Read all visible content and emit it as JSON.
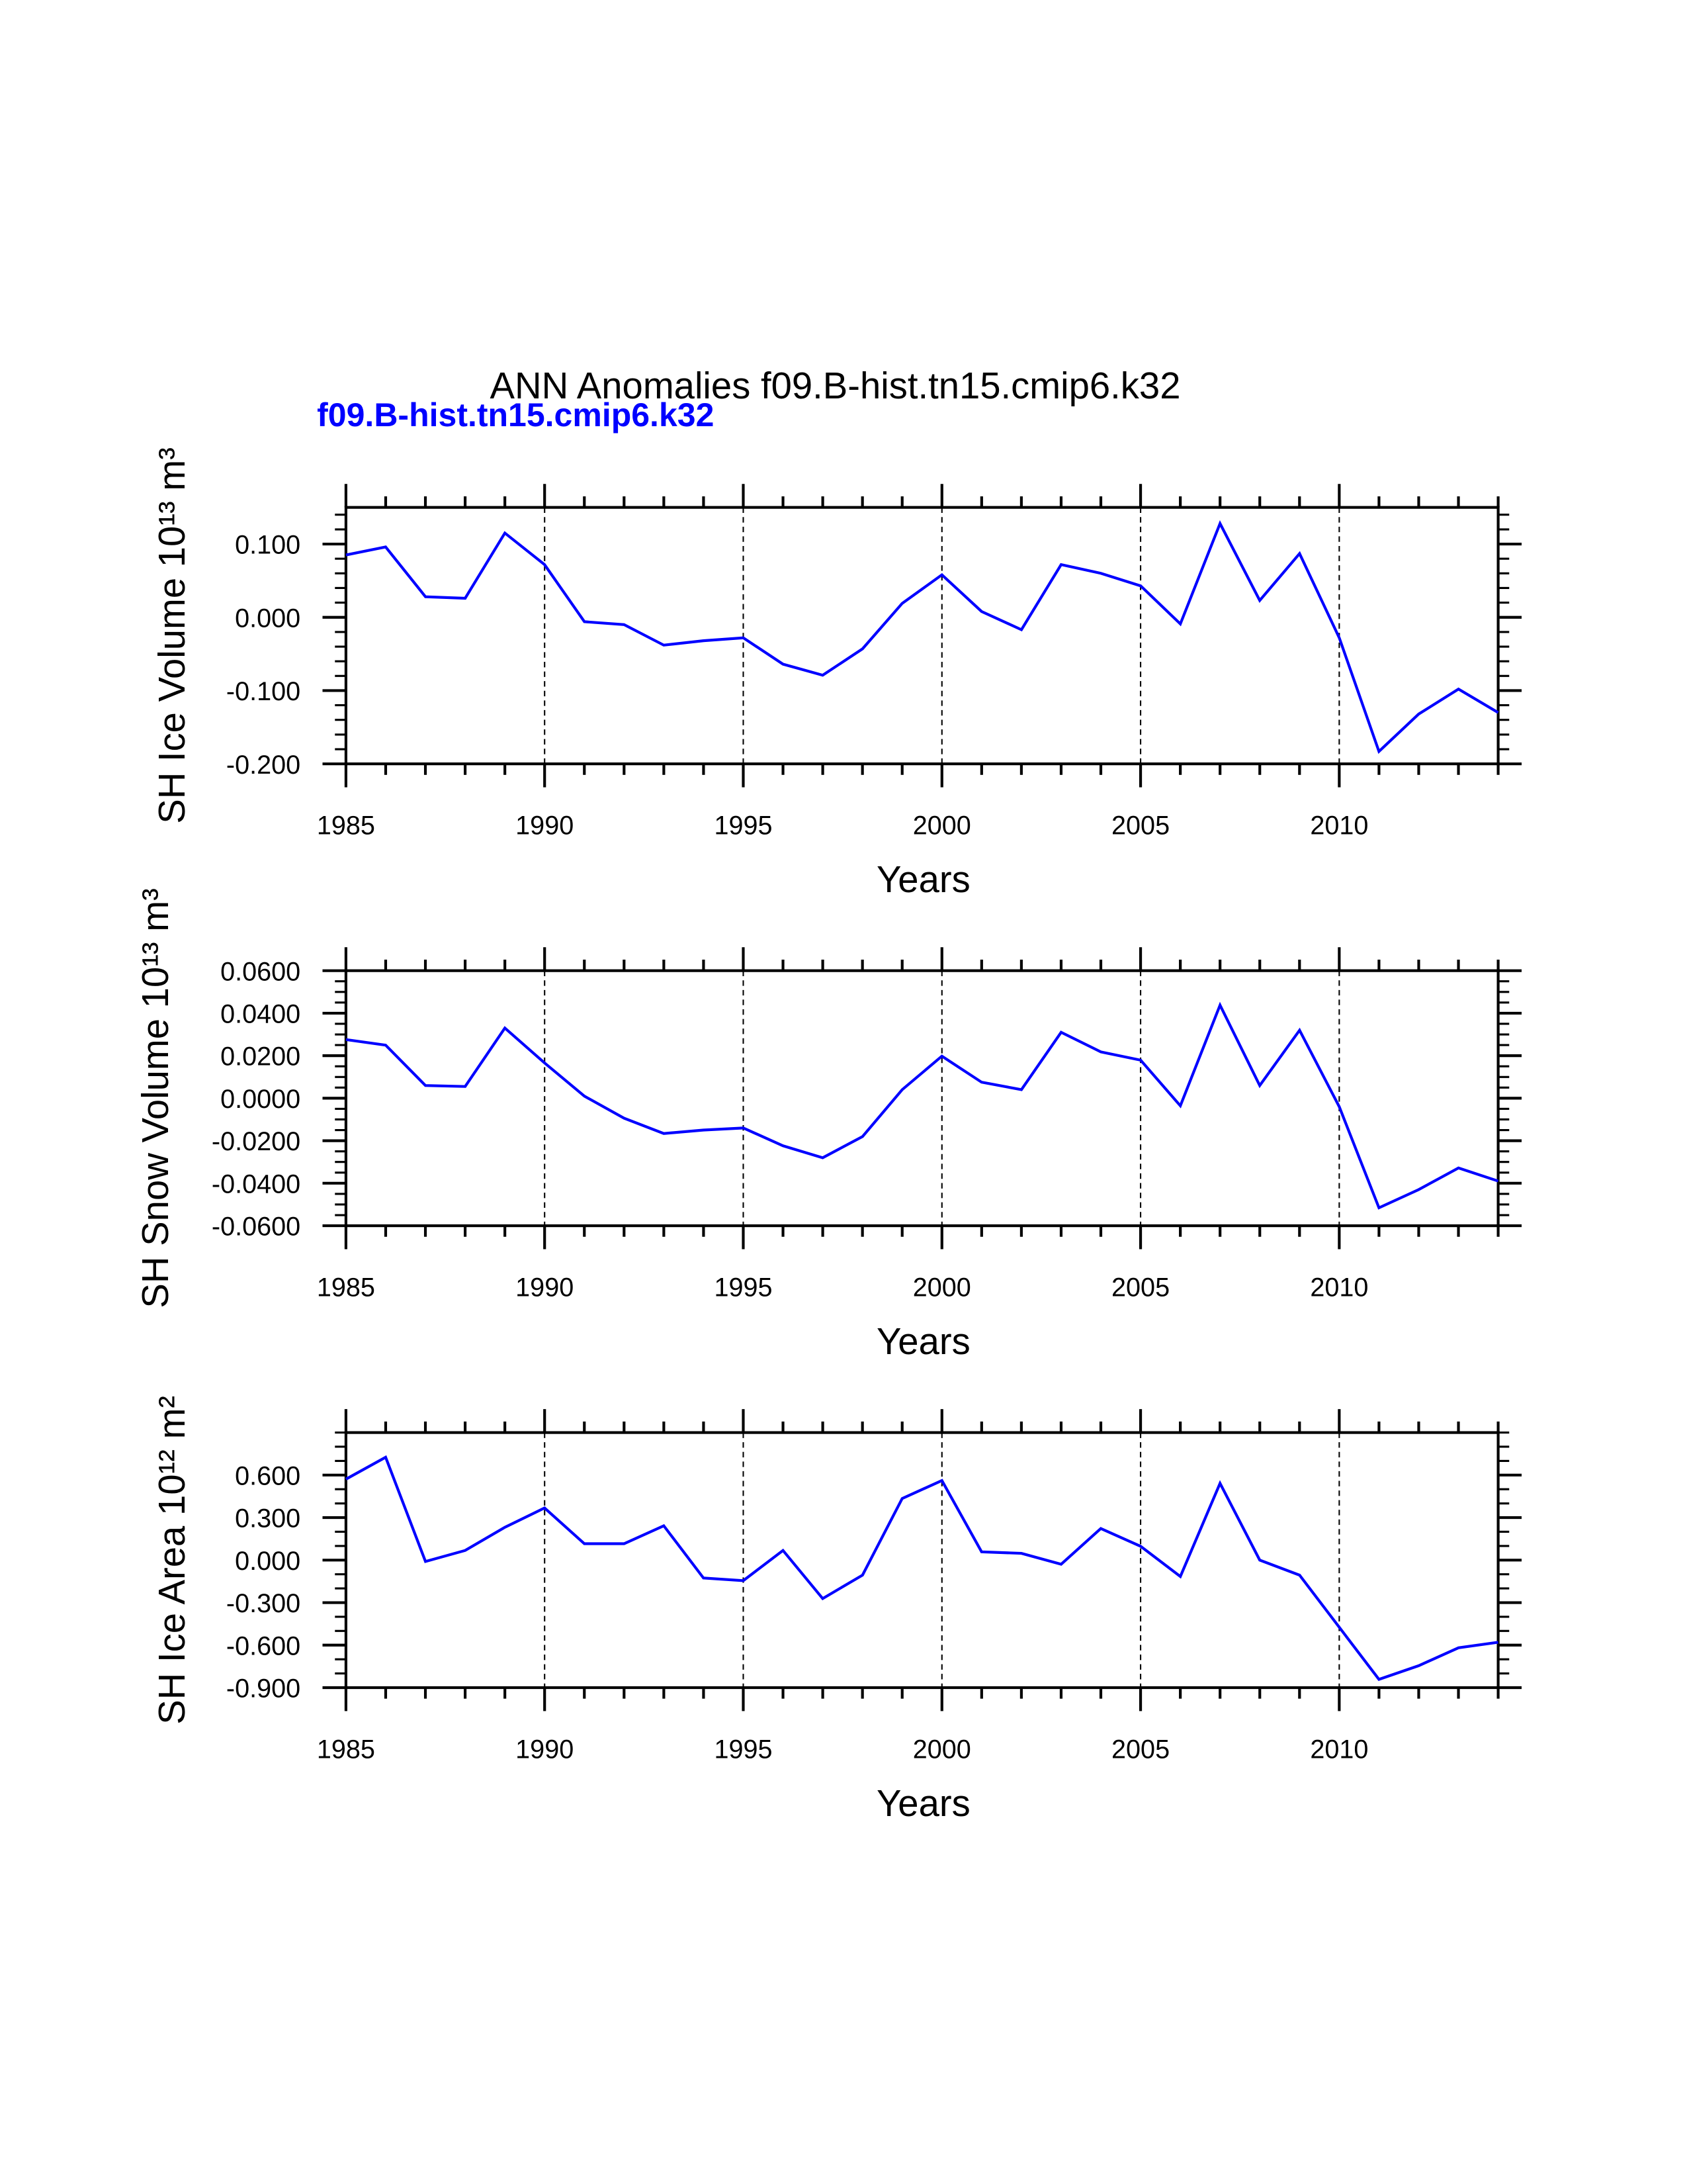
{
  "title": "ANN Anomalies f09.B-hist.tn15.cmip6.k32",
  "subtitle": "f09.B-hist.tn15.cmip6.k32",
  "colors": {
    "line": "#0000ff",
    "subtitle": "#0000ff",
    "axes": "#000000"
  },
  "chart_data": [
    {
      "type": "line",
      "xlabel": "Years",
      "ylabel": "SH Ice Volume 10¹³ m³",
      "xlim": [
        1985,
        2014
      ],
      "ylim": [
        -0.2,
        0.15
      ],
      "xticks": [
        1985,
        1990,
        1995,
        2000,
        2005,
        2010
      ],
      "xticklabels": [
        "1985",
        "1990",
        "1995",
        "2000",
        "2005",
        "2010"
      ],
      "yticks": [
        0.1,
        0.0,
        -0.1,
        -0.2
      ],
      "yticklabels": [
        "0.100",
        "0.000",
        "-0.100",
        "-0.200"
      ],
      "yminor_step": 0.02,
      "grid": "dashed vertical at major x ticks",
      "series": [
        {
          "name": "f09.B-hist.tn15.cmip6.k32",
          "x": [
            1985,
            1986,
            1987,
            1988,
            1989,
            1990,
            1991,
            1992,
            1993,
            1994,
            1995,
            1996,
            1997,
            1998,
            1999,
            2000,
            2001,
            2002,
            2003,
            2004,
            2005,
            2006,
            2007,
            2008,
            2009,
            2010,
            2011,
            2012,
            2013,
            2014
          ],
          "values": [
            0.085,
            0.096,
            0.028,
            0.026,
            0.115,
            0.072,
            -0.006,
            -0.01,
            -0.038,
            -0.032,
            -0.028,
            -0.064,
            -0.079,
            -0.043,
            0.019,
            0.058,
            0.008,
            -0.017,
            0.072,
            0.06,
            0.043,
            -0.009,
            0.128,
            0.023,
            0.087,
            -0.028,
            -0.183,
            -0.132,
            -0.098,
            -0.13
          ]
        }
      ]
    },
    {
      "type": "line",
      "xlabel": "Years",
      "ylabel": "SH Snow Volume 10¹³ m³",
      "xlim": [
        1985,
        2014
      ],
      "ylim": [
        -0.06,
        0.06
      ],
      "xticks": [
        1985,
        1990,
        1995,
        2000,
        2005,
        2010
      ],
      "xticklabels": [
        "1985",
        "1990",
        "1995",
        "2000",
        "2005",
        "2010"
      ],
      "yticks": [
        0.06,
        0.04,
        0.02,
        0.0,
        -0.02,
        -0.04,
        -0.06
      ],
      "yticklabels": [
        "0.0600",
        "0.0400",
        "0.0200",
        "0.0000",
        "-0.0200",
        "-0.0400",
        "-0.0600"
      ],
      "yminor_step": 0.005,
      "grid": "dashed vertical at major x ticks",
      "series": [
        {
          "name": "f09.B-hist.tn15.cmip6.k32",
          "x": [
            1985,
            1986,
            1987,
            1988,
            1989,
            1990,
            1991,
            1992,
            1993,
            1994,
            1995,
            1996,
            1997,
            1998,
            1999,
            2000,
            2001,
            2002,
            2003,
            2004,
            2005,
            2006,
            2007,
            2008,
            2009,
            2010,
            2011,
            2012,
            2013,
            2014
          ],
          "values": [
            0.0276,
            0.025,
            0.006,
            0.0055,
            0.033,
            0.0166,
            0.001,
            -0.0094,
            -0.0166,
            -0.015,
            -0.014,
            -0.0224,
            -0.028,
            -0.018,
            0.004,
            0.0198,
            0.0075,
            0.004,
            0.031,
            0.0218,
            0.0179,
            -0.0036,
            0.0438,
            0.006,
            0.032,
            -0.004,
            -0.0516,
            -0.043,
            -0.0328,
            -0.039
          ]
        }
      ]
    },
    {
      "type": "line",
      "xlabel": "Years",
      "ylabel": "SH Ice Area 10¹² m²",
      "xlim": [
        1985,
        2014
      ],
      "ylim": [
        -0.9,
        0.9
      ],
      "xticks": [
        1985,
        1990,
        1995,
        2000,
        2005,
        2010
      ],
      "xticklabels": [
        "1985",
        "1990",
        "1995",
        "2000",
        "2005",
        "2010"
      ],
      "yticks": [
        0.6,
        0.3,
        0.0,
        -0.3,
        -0.6,
        -0.9
      ],
      "yticklabels": [
        "0.600",
        "0.300",
        "0.000",
        "-0.300",
        "-0.600",
        "-0.900"
      ],
      "yminor_step": 0.1,
      "grid": "dashed vertical at major x ticks",
      "series": [
        {
          "name": "f09.B-hist.tn15.cmip6.k32",
          "x": [
            1985,
            1986,
            1987,
            1988,
            1989,
            1990,
            1991,
            1992,
            1993,
            1994,
            1995,
            1996,
            1997,
            1998,
            1999,
            2000,
            2001,
            2002,
            2003,
            2004,
            2005,
            2006,
            2007,
            2008,
            2009,
            2010,
            2011,
            2012,
            2013,
            2014
          ],
          "values": [
            0.571,
            0.726,
            -0.01,
            0.068,
            0.232,
            0.368,
            0.116,
            0.116,
            0.242,
            -0.126,
            -0.145,
            0.068,
            -0.271,
            -0.106,
            0.435,
            0.561,
            0.058,
            0.048,
            -0.029,
            0.223,
            0.097,
            -0.116,
            0.542,
            0.0,
            -0.106,
            -0.474,
            -0.842,
            -0.745,
            -0.619,
            -0.58
          ]
        }
      ]
    }
  ]
}
